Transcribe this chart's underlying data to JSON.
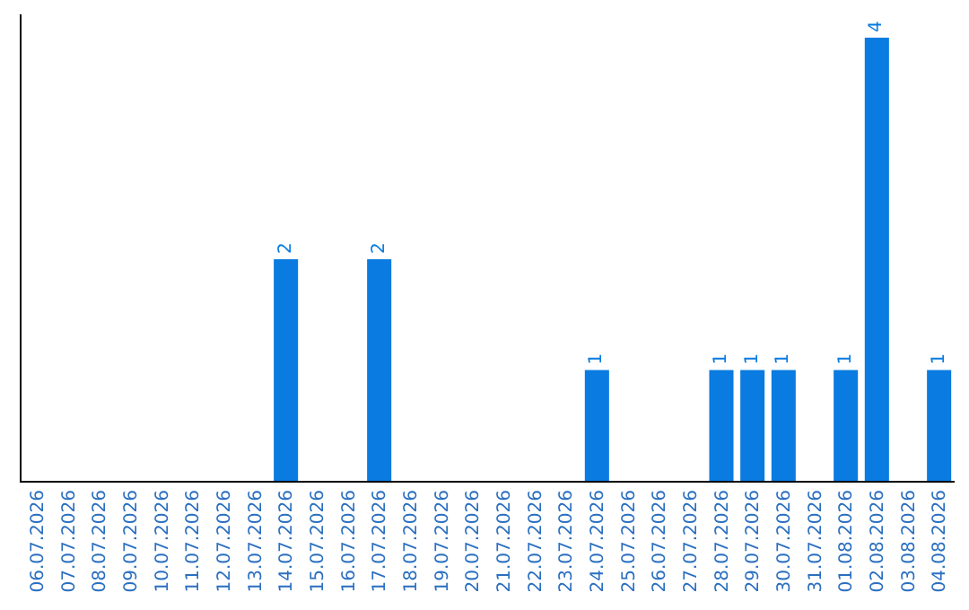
{
  "chart_data": {
    "type": "bar",
    "categories": [
      "06.07.2026",
      "07.07.2026",
      "08.07.2026",
      "09.07.2026",
      "10.07.2026",
      "11.07.2026",
      "12.07.2026",
      "13.07.2026",
      "14.07.2026",
      "15.07.2026",
      "16.07.2026",
      "17.07.2026",
      "18.07.2026",
      "19.07.2026",
      "20.07.2026",
      "21.07.2026",
      "22.07.2026",
      "23.07.2026",
      "24.07.2026",
      "25.07.2026",
      "26.07.2026",
      "27.07.2026",
      "28.07.2026",
      "29.07.2026",
      "30.07.2026",
      "31.07.2026",
      "01.08.2026",
      "02.08.2026",
      "03.08.2026",
      "04.08.2026"
    ],
    "values": [
      0,
      0,
      0,
      0,
      0,
      0,
      0,
      0,
      2,
      0,
      0,
      2,
      0,
      0,
      0,
      0,
      0,
      0,
      1,
      0,
      0,
      0,
      1,
      1,
      1,
      0,
      1,
      4,
      0,
      1
    ],
    "color": "#0a7be0",
    "value_labels": [
      null,
      null,
      null,
      null,
      null,
      null,
      null,
      null,
      "2",
      null,
      null,
      "2",
      null,
      null,
      null,
      null,
      null,
      null,
      "1",
      null,
      null,
      null,
      "1",
      "1",
      "1",
      null,
      "1",
      "4",
      null,
      "1"
    ],
    "tick_labels": "x"
  }
}
